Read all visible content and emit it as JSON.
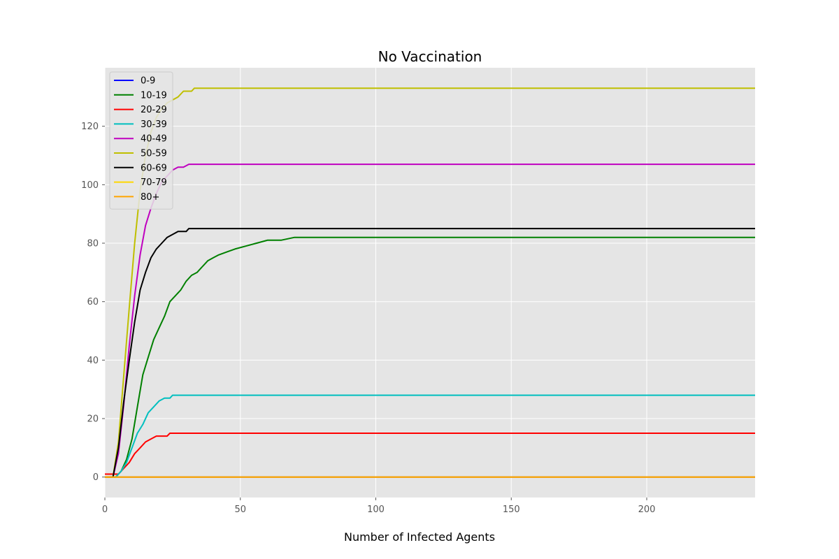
{
  "chart_data": {
    "type": "line",
    "title": "No Vaccination",
    "xlabel": "Number of Infected Agents",
    "ylabel": "",
    "xlim": [
      0,
      240
    ],
    "ylim": [
      -7,
      140
    ],
    "xticks": [
      0,
      50,
      100,
      150,
      200
    ],
    "yticks": [
      0,
      20,
      40,
      60,
      80,
      100,
      120
    ],
    "grid": true,
    "legend_position": "top-left",
    "background": "#e5e5e5",
    "series": [
      {
        "name": "0-9",
        "color": "#0000ff",
        "points": [
          [
            0,
            0
          ],
          [
            240,
            0
          ]
        ]
      },
      {
        "name": "10-19",
        "color": "#008000",
        "points": [
          [
            0,
            0
          ],
          [
            4,
            0
          ],
          [
            6,
            2
          ],
          [
            8,
            6
          ],
          [
            10,
            13
          ],
          [
            12,
            24
          ],
          [
            14,
            35
          ],
          [
            16,
            41
          ],
          [
            18,
            47
          ],
          [
            20,
            51
          ],
          [
            22,
            55
          ],
          [
            24,
            60
          ],
          [
            26,
            62
          ],
          [
            28,
            64
          ],
          [
            30,
            67
          ],
          [
            32,
            69
          ],
          [
            34,
            70
          ],
          [
            36,
            72
          ],
          [
            38,
            74
          ],
          [
            40,
            75
          ],
          [
            42,
            76
          ],
          [
            45,
            77
          ],
          [
            48,
            78
          ],
          [
            52,
            79
          ],
          [
            56,
            80
          ],
          [
            60,
            81
          ],
          [
            65,
            81
          ],
          [
            70,
            82
          ],
          [
            240,
            82
          ]
        ]
      },
      {
        "name": "20-29",
        "color": "#ff0000",
        "points": [
          [
            0,
            1
          ],
          [
            5,
            1
          ],
          [
            7,
            3
          ],
          [
            9,
            5
          ],
          [
            11,
            8
          ],
          [
            13,
            10
          ],
          [
            15,
            12
          ],
          [
            17,
            13
          ],
          [
            19,
            14
          ],
          [
            23,
            14
          ],
          [
            24,
            15
          ],
          [
            240,
            15
          ]
        ]
      },
      {
        "name": "30-39",
        "color": "#00bfbf",
        "points": [
          [
            0,
            0
          ],
          [
            4,
            0
          ],
          [
            6,
            2
          ],
          [
            8,
            5
          ],
          [
            10,
            10
          ],
          [
            12,
            15
          ],
          [
            14,
            18
          ],
          [
            16,
            22
          ],
          [
            18,
            24
          ],
          [
            20,
            26
          ],
          [
            22,
            27
          ],
          [
            24,
            27
          ],
          [
            25,
            28
          ],
          [
            240,
            28
          ]
        ]
      },
      {
        "name": "40-49",
        "color": "#bf00bf",
        "points": [
          [
            0,
            0
          ],
          [
            3,
            0
          ],
          [
            5,
            8
          ],
          [
            7,
            25
          ],
          [
            9,
            45
          ],
          [
            11,
            62
          ],
          [
            13,
            76
          ],
          [
            15,
            86
          ],
          [
            17,
            92
          ],
          [
            19,
            97
          ],
          [
            21,
            101
          ],
          [
            23,
            103
          ],
          [
            25,
            105
          ],
          [
            27,
            106
          ],
          [
            29,
            106
          ],
          [
            31,
            107
          ],
          [
            240,
            107
          ]
        ]
      },
      {
        "name": "50-59",
        "color": "#bfbf00",
        "points": [
          [
            0,
            0
          ],
          [
            3,
            0
          ],
          [
            5,
            12
          ],
          [
            7,
            35
          ],
          [
            9,
            58
          ],
          [
            11,
            80
          ],
          [
            13,
            98
          ],
          [
            15,
            110
          ],
          [
            17,
            118
          ],
          [
            19,
            123
          ],
          [
            21,
            126
          ],
          [
            23,
            128
          ],
          [
            25,
            129
          ],
          [
            27,
            130
          ],
          [
            29,
            132
          ],
          [
            32,
            132
          ],
          [
            33,
            133
          ],
          [
            240,
            133
          ]
        ]
      },
      {
        "name": "60-69",
        "color": "#000000",
        "points": [
          [
            0,
            0
          ],
          [
            3,
            0
          ],
          [
            5,
            10
          ],
          [
            7,
            26
          ],
          [
            9,
            40
          ],
          [
            11,
            53
          ],
          [
            13,
            64
          ],
          [
            15,
            70
          ],
          [
            17,
            75
          ],
          [
            19,
            78
          ],
          [
            21,
            80
          ],
          [
            23,
            82
          ],
          [
            25,
            83
          ],
          [
            27,
            84
          ],
          [
            30,
            84
          ],
          [
            31,
            85
          ],
          [
            240,
            85
          ]
        ]
      },
      {
        "name": "70-79",
        "color": "#ffd700",
        "points": [
          [
            0,
            0
          ],
          [
            240,
            0
          ]
        ]
      },
      {
        "name": "80+",
        "color": "#ffa500",
        "points": [
          [
            0,
            0
          ],
          [
            240,
            0
          ]
        ]
      }
    ]
  }
}
